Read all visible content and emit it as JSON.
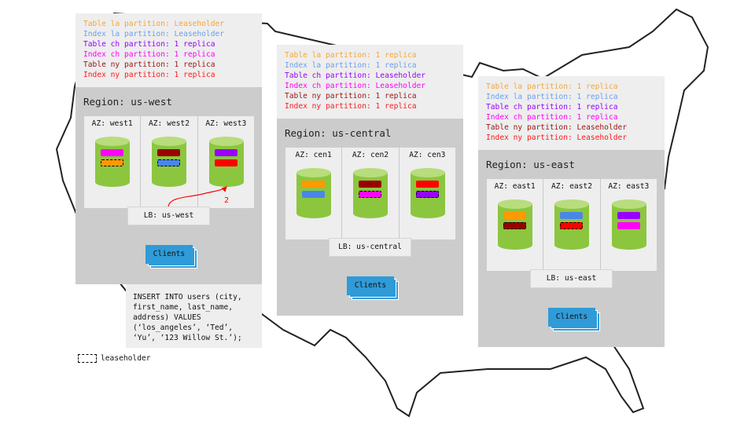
{
  "colors": {
    "table_la": "#ff9900",
    "index_la": "#4a86e8",
    "table_ch": "#9900ff",
    "index_ch": "#ff00ff",
    "table_ny": "#990000",
    "index_ny": "#ff0000",
    "legend_table_la": "#f6a637",
    "legend_index_la": "#6d9eeb",
    "legend_table_ch": "#9900ff",
    "legend_index_ch": "#ff00ff",
    "legend_table_ny": "#991515",
    "legend_index_ny": "#ff1a1a",
    "cylinder": "#8cc63f",
    "clients": "#2f9bd8",
    "arrow": "#ff0000"
  },
  "regions": [
    {
      "id": "us-west",
      "title": "Region: us-west",
      "legend": [
        {
          "key": "table_la",
          "text": "Table la partition: Leaseholder"
        },
        {
          "key": "index_la",
          "text": "Index la partition: Leaseholder"
        },
        {
          "key": "table_ch",
          "text": "Table ch partition: 1 replica"
        },
        {
          "key": "index_ch",
          "text": "Index ch partition: 1 replica"
        },
        {
          "key": "table_ny",
          "text": "Table ny partition: 1 replica"
        },
        {
          "key": "index_ny",
          "text": "Index ny partition: 1 replica"
        }
      ],
      "azs": [
        {
          "label": "AZ: west1",
          "partitions": [
            {
              "key": "index_ch",
              "leaseholder": false
            },
            {
              "key": "table_la",
              "leaseholder": true
            }
          ]
        },
        {
          "label": "AZ: west2",
          "partitions": [
            {
              "key": "table_ny",
              "leaseholder": false
            },
            {
              "key": "index_la",
              "leaseholder": true
            }
          ]
        },
        {
          "label": "AZ: west3",
          "partitions": [
            {
              "key": "table_ch",
              "leaseholder": false
            },
            {
              "key": "index_ny",
              "leaseholder": false
            }
          ]
        }
      ],
      "lb": "LB: us-west",
      "clients": "Clients",
      "arrow_label": "2"
    },
    {
      "id": "us-central",
      "title": "Region: us-central",
      "legend": [
        {
          "key": "table_la",
          "text": "Table la partition: 1 replica"
        },
        {
          "key": "index_la",
          "text": "Index la partition: 1 replica"
        },
        {
          "key": "table_ch",
          "text": "Table ch partition: Leaseholder"
        },
        {
          "key": "index_ch",
          "text": "Index ch partition: Leaseholder"
        },
        {
          "key": "table_ny",
          "text": "Table ny partition: 1 replica"
        },
        {
          "key": "index_ny",
          "text": "Index ny partition: 1 replica"
        }
      ],
      "azs": [
        {
          "label": "AZ: cen1",
          "partitions": [
            {
              "key": "table_la",
              "leaseholder": false
            },
            {
              "key": "index_la",
              "leaseholder": false
            }
          ]
        },
        {
          "label": "AZ: cen2",
          "partitions": [
            {
              "key": "table_ny",
              "leaseholder": false
            },
            {
              "key": "index_ch",
              "leaseholder": true
            }
          ]
        },
        {
          "label": "AZ: cen3",
          "partitions": [
            {
              "key": "index_ny",
              "leaseholder": false
            },
            {
              "key": "table_ch",
              "leaseholder": true
            }
          ]
        }
      ],
      "lb": "LB: us-central",
      "clients": "Clients"
    },
    {
      "id": "us-east",
      "title": "Region: us-east",
      "legend": [
        {
          "key": "table_la",
          "text": "Table la partition: 1 replica"
        },
        {
          "key": "index_la",
          "text": "Index la partition: 1 replica"
        },
        {
          "key": "table_ch",
          "text": "Table ch partition: 1 replica"
        },
        {
          "key": "index_ch",
          "text": "Index ch partition: 1 replica"
        },
        {
          "key": "table_ny",
          "text": "Table ny partition: Leaseholder"
        },
        {
          "key": "index_ny",
          "text": "Index ny partition: Leaseholder"
        }
      ],
      "azs": [
        {
          "label": "AZ: east1",
          "partitions": [
            {
              "key": "table_la",
              "leaseholder": false
            },
            {
              "key": "table_ny",
              "leaseholder": true
            }
          ]
        },
        {
          "label": "AZ: east2",
          "partitions": [
            {
              "key": "index_la",
              "leaseholder": false
            },
            {
              "key": "index_ny",
              "leaseholder": true
            }
          ]
        },
        {
          "label": "AZ: east3",
          "partitions": [
            {
              "key": "table_ch",
              "leaseholder": false
            },
            {
              "key": "index_ch",
              "leaseholder": false
            }
          ]
        }
      ],
      "lb": "LB: us-east",
      "clients": "Clients"
    }
  ],
  "sql": "INSERT INTO users (city,\nfirst_name, last_name,\naddress) VALUES\n(‘los_angeles’, ‘Ted’,\n‘Yu’, ‘123 Willow St.’);",
  "leaseholder_key": "leaseholder"
}
